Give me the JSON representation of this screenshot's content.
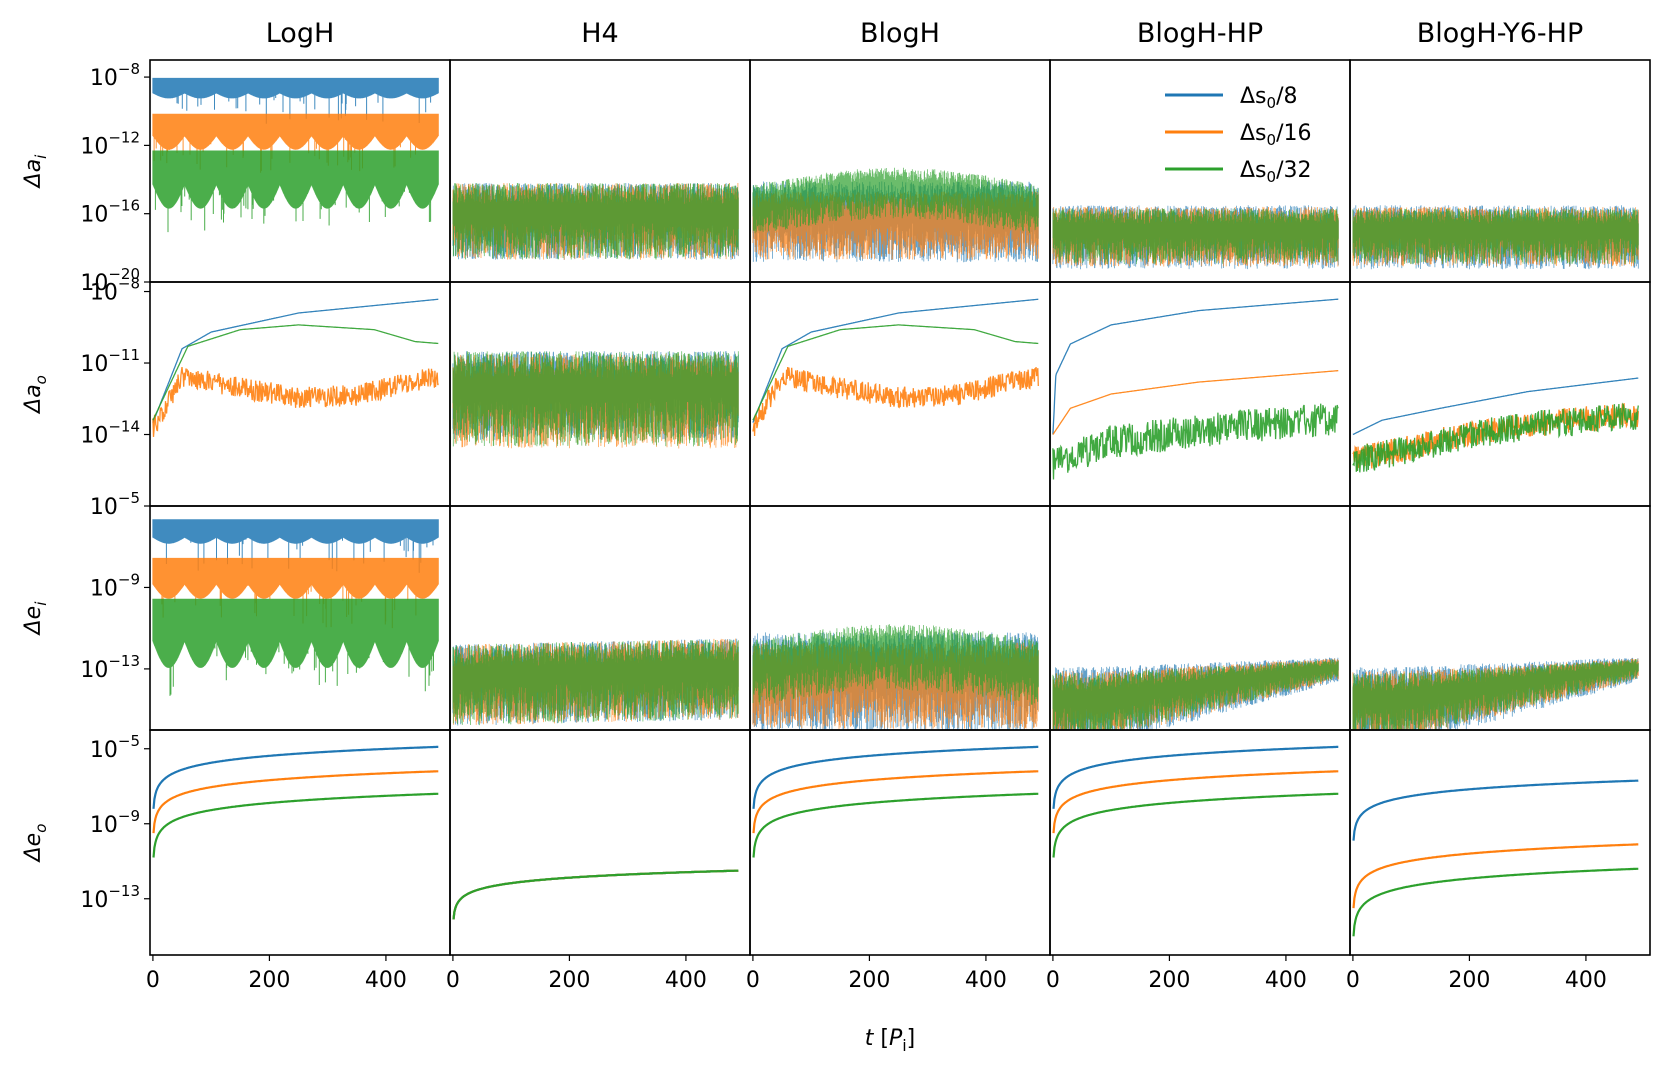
{
  "chart_data": {
    "type": "line",
    "layout": "grid 4 rows x 5 columns, shared x axis, shared y axis per row",
    "columns": [
      "LogH",
      "H4",
      "BlogH",
      "BlogH-HP",
      "BlogH-Y6-HP"
    ],
    "xlabel": "t [P_i]",
    "xlabel_parts": {
      "t": "t",
      "open": " [",
      "p": "P",
      "sub": "i",
      "close": "]"
    },
    "xlim": [
      -5,
      510
    ],
    "xticks": [
      0,
      200,
      400
    ],
    "xtick_labels": [
      "0",
      "200",
      "400"
    ],
    "legend": {
      "location": "upper-right of BlogH-HP top panel",
      "entries": [
        "Δs0/8",
        "Δs0/16",
        "Δs0/32"
      ],
      "label_parts": [
        {
          "pre": "Δs",
          "sub": "0",
          "post": "/8"
        },
        {
          "pre": "Δs",
          "sub": "0",
          "post": "/16"
        },
        {
          "pre": "Δs",
          "sub": "0",
          "post": "/32"
        }
      ]
    },
    "colors": {
      "Δs0/8": "#1f77b4",
      "Δs0/16": "#ff7f0e",
      "Δs0/32": "#2ca02c"
    },
    "rows": [
      {
        "ylabel": "Δa_i",
        "ylabel_parts": {
          "pre": "Δa",
          "sub": "i"
        },
        "ylim_log10": [
          -20,
          -7
        ],
        "yticks_log10": [
          -8,
          -12,
          -16,
          -20
        ],
        "ytick_labels": [
          [
            "10",
            "−8"
          ],
          [
            "10",
            "−12"
          ],
          [
            "10",
            "−16"
          ],
          [
            "10",
            "−20"
          ]
        ]
      },
      {
        "ylabel": "Δa_o",
        "ylabel_parts": {
          "pre": "Δa",
          "sub": "o"
        },
        "ylim_log10": [
          -17,
          -7.6
        ],
        "yticks_log10": [
          -8,
          -11,
          -14
        ],
        "ytick_labels": [
          [
            "10",
            "−8"
          ],
          [
            "10",
            "−11"
          ],
          [
            "10",
            "−14"
          ]
        ]
      },
      {
        "ylabel": "Δe_i",
        "ylabel_parts": {
          "pre": "Δe",
          "sub": "i"
        },
        "ylim_log10": [
          -16,
          -5
        ],
        "yticks_log10": [
          -5,
          -9,
          -13
        ],
        "ytick_labels": [
          [
            "10",
            "−5"
          ],
          [
            "10",
            "−9"
          ],
          [
            "10",
            "−13"
          ]
        ]
      },
      {
        "ylabel": "Δe_o",
        "ylabel_parts": {
          "pre": "Δe",
          "sub": "o"
        },
        "ylim_log10": [
          -16,
          -4
        ],
        "yticks_log10": [
          -5,
          -9,
          -13
        ],
        "ytick_labels": [
          [
            "10",
            "−5"
          ],
          [
            "10",
            "−9"
          ],
          [
            "10",
            "−13"
          ]
        ]
      }
    ],
    "panels": {
      "r0": {
        "LogH": {
          "kind": "osc",
          "show": true,
          "series": [
            {
              "c": -8.5,
              "w": 0.9,
              "env": 0.3
            },
            {
              "c": -10.8,
              "w": 1.3,
              "env": 0.8
            },
            {
              "c": -13.3,
              "w": 2.0,
              "env": 1.4
            }
          ]
        },
        "H4": {
          "kind": "noise",
          "show": true,
          "series": [
            {
              "c": -16.0,
              "w": 1.8
            },
            {
              "c": -16.0,
              "w": 1.8
            },
            {
              "c": -16.0,
              "w": 1.8
            }
          ]
        },
        "BlogH": {
          "kind": "noise",
          "show": true,
          "series": [
            {
              "c": -16.0,
              "w": 1.9
            },
            {
              "c": -16.3,
              "w": 1.6
            },
            {
              "c": -15.5,
              "w": 1.2,
              "hump": 1.0
            }
          ]
        },
        "BlogH-HP": {
          "kind": "noise",
          "show": true,
          "series": [
            {
              "c": -17.0,
              "w": 1.5
            },
            {
              "c": -17.0,
              "w": 1.4
            },
            {
              "c": -17.0,
              "w": 1.3
            }
          ]
        },
        "BlogH-Y6-HP": {
          "kind": "noise",
          "show": true,
          "series": [
            {
              "c": -17.0,
              "w": 1.5
            },
            {
              "c": -17.0,
              "w": 1.4
            },
            {
              "c": -17.0,
              "w": 1.3
            }
          ]
        }
      },
      "r1": {
        "LogH": {
          "kind": "grow_noisy",
          "series": [
            {
              "t": [
                0,
                50,
                100,
                250,
                500
              ],
              "v": [
                -13.5,
                -10.4,
                -9.7,
                -8.9,
                -8.3
              ]
            },
            {
              "t": [
                0,
                50,
                150,
                250,
                350,
                450,
                500
              ],
              "v": [
                -13.3,
                -11.1,
                -11.6,
                -12.0,
                -11.9,
                -11.3,
                -11.1
              ],
              "noise": 0.9
            },
            {
              "t": [
                0,
                60,
                150,
                250,
                380,
                450,
                500
              ],
              "v": [
                -13.4,
                -10.3,
                -9.6,
                -9.4,
                -9.6,
                -10.1,
                -10.2
              ]
            }
          ]
        },
        "H4": {
          "kind": "noise",
          "series": [
            {
              "c": -12.0,
              "w": 1.5
            },
            {
              "c": -12.2,
              "w": 1.6
            },
            {
              "c": -12.1,
              "w": 1.6
            }
          ]
        },
        "BlogH": {
          "kind": "grow_noisy",
          "series": [
            {
              "t": [
                0,
                50,
                100,
                250,
                500
              ],
              "v": [
                -13.5,
                -10.4,
                -9.7,
                -8.9,
                -8.3
              ]
            },
            {
              "t": [
                0,
                50,
                150,
                250,
                350,
                450,
                500
              ],
              "v": [
                -13.3,
                -11.1,
                -11.6,
                -12.0,
                -11.9,
                -11.3,
                -11.1
              ],
              "noise": 0.9
            },
            {
              "t": [
                0,
                60,
                150,
                250,
                380,
                450,
                500
              ],
              "v": [
                -13.4,
                -10.3,
                -9.6,
                -9.4,
                -9.6,
                -10.1,
                -10.2
              ]
            }
          ]
        },
        "BlogH-HP": {
          "kind": "grow_noisy",
          "series": [
            {
              "t": [
                0,
                5,
                30,
                100,
                250,
                500
              ],
              "v": [
                -14.0,
                -11.5,
                -10.2,
                -9.4,
                -8.8,
                -8.3
              ]
            },
            {
              "t": [
                0,
                30,
                100,
                250,
                500
              ],
              "v": [
                -14.0,
                -12.9,
                -12.3,
                -11.8,
                -11.3
              ]
            },
            {
              "t": [
                0,
                100,
                200,
                300,
                400,
                500
              ],
              "v": [
                -14.5,
                -13.6,
                -13.3,
                -13.0,
                -12.8,
                -12.6
              ],
              "noise": 1.4
            }
          ]
        },
        "BlogH-Y6-HP": {
          "kind": "grow_noisy",
          "series": [
            {
              "t": [
                0,
                50,
                150,
                300,
                500
              ],
              "v": [
                -14.0,
                -13.4,
                -12.9,
                -12.2,
                -11.6
              ]
            },
            {
              "t": [
                0,
                100,
                200,
                350,
                500
              ],
              "v": [
                -14.5,
                -14.0,
                -13.4,
                -12.9,
                -12.6
              ],
              "noise": 1.1
            },
            {
              "t": [
                0,
                100,
                200,
                350,
                500
              ],
              "v": [
                -14.5,
                -14.0,
                -13.4,
                -12.9,
                -12.6
              ],
              "noise": 1.2
            }
          ]
        }
      },
      "r2": {
        "LogH": {
          "kind": "osc",
          "series": [
            {
              "c": -6.1,
              "w": 0.9,
              "env": 0.3
            },
            {
              "c": -8.2,
              "w": 1.3,
              "env": 0.7
            },
            {
              "c": -10.6,
              "w": 2.1,
              "env": 1.3
            }
          ]
        },
        "H4": {
          "kind": "noise",
          "series": [
            {
              "c": -13.4,
              "w": 1.6,
              "trend": 0.3
            },
            {
              "c": -13.4,
              "w": 1.6,
              "trend": 0.3
            },
            {
              "c": -13.4,
              "w": 1.6,
              "trend": 0.3
            }
          ]
        },
        "BlogH": {
          "kind": "noise",
          "series": [
            {
              "c": -13.2,
              "w": 2.0
            },
            {
              "c": -13.4,
              "w": 1.7
            },
            {
              "c": -12.9,
              "w": 1.3,
              "hump": 0.8
            }
          ]
        },
        "BlogH-HP": {
          "kind": "grow_noise",
          "series": [
            {
              "c": -14.5,
              "w": 1.6
            },
            {
              "c": -14.5,
              "w": 1.4
            },
            {
              "c": -14.5,
              "w": 1.3
            }
          ]
        },
        "BlogH-Y6-HP": {
          "kind": "grow_noise",
          "series": [
            {
              "c": -14.5,
              "w": 1.6
            },
            {
              "c": -14.5,
              "w": 1.4
            },
            {
              "c": -14.5,
              "w": 1.3
            }
          ]
        }
      },
      "r3": {
        "LogH": {
          "kind": "grow",
          "series": [
            {
              "v0": -8.2,
              "v1": -4.9
            },
            {
              "v0": -9.5,
              "v1": -6.2
            },
            {
              "v0": -10.8,
              "v1": -7.4
            }
          ]
        },
        "H4": {
          "kind": "grow",
          "series": [
            {
              "v0": -14.1,
              "v1": -11.5
            },
            {
              "v0": -14.1,
              "v1": -11.5
            },
            {
              "v0": -14.1,
              "v1": -11.5
            }
          ]
        },
        "BlogH": {
          "kind": "grow",
          "series": [
            {
              "v0": -8.2,
              "v1": -4.9
            },
            {
              "v0": -9.5,
              "v1": -6.2
            },
            {
              "v0": -10.8,
              "v1": -7.4
            }
          ]
        },
        "BlogH-HP": {
          "kind": "grow",
          "series": [
            {
              "v0": -8.2,
              "v1": -4.9
            },
            {
              "v0": -9.5,
              "v1": -6.2
            },
            {
              "v0": -10.8,
              "v1": -7.4
            }
          ]
        },
        "BlogH-Y6-HP": {
          "kind": "grow",
          "series": [
            {
              "v0": -9.9,
              "v1": -6.7
            },
            {
              "v0": -13.5,
              "v1": -10.1
            },
            {
              "v0": -15.0,
              "v1": -11.4
            }
          ]
        }
      }
    }
  }
}
